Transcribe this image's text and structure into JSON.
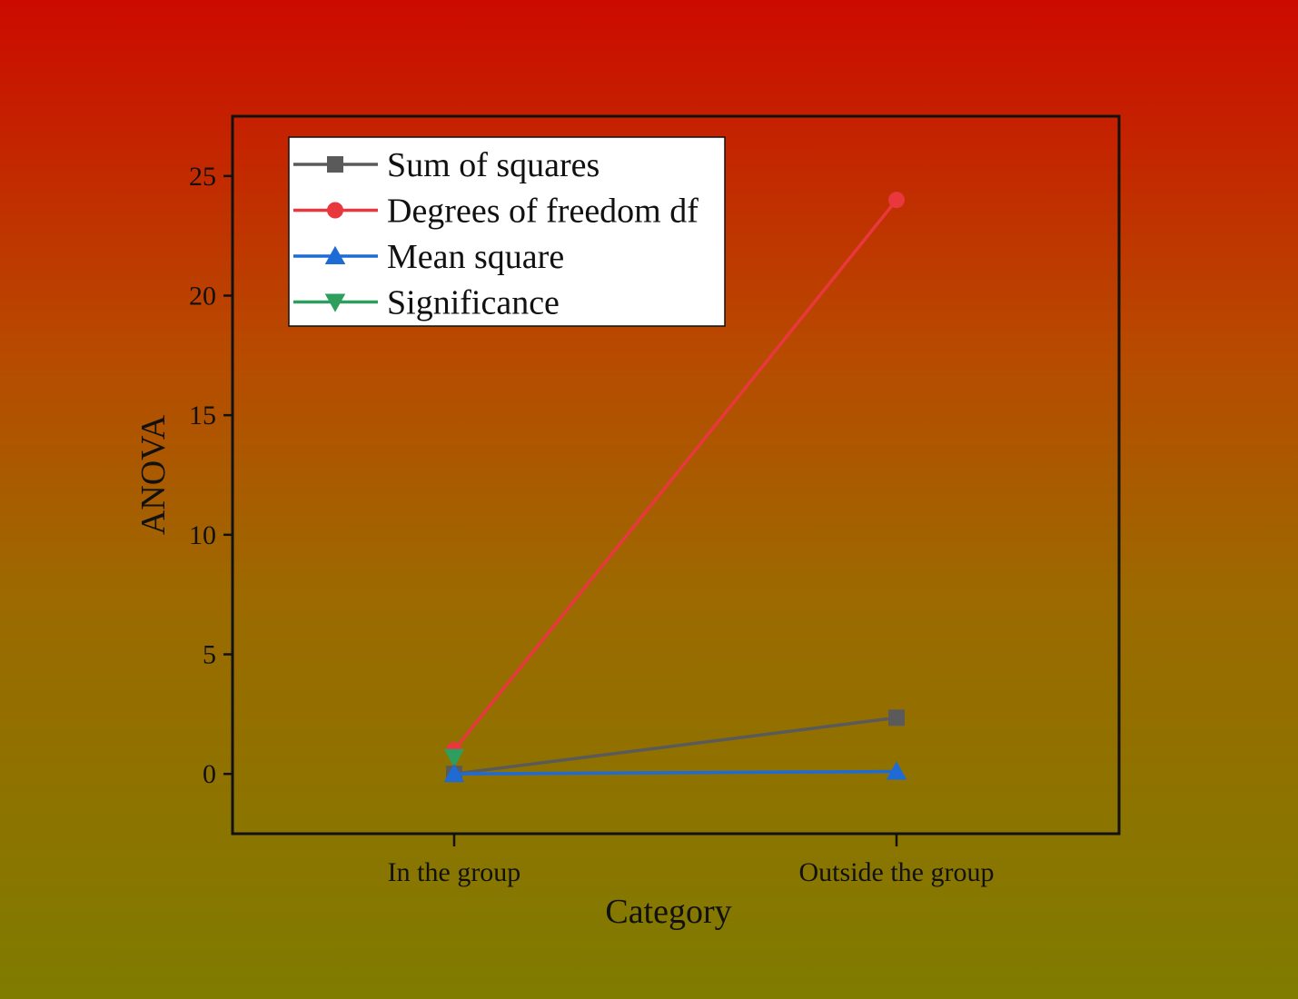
{
  "chart_data": {
    "type": "line",
    "categories": [
      "In the group",
      "Outside the group"
    ],
    "xlabel": "Category",
    "ylabel": "ANOVA",
    "ylim": [
      -2.5,
      27.5
    ],
    "yticks": [
      0,
      5,
      10,
      15,
      20,
      25
    ],
    "grid": false,
    "legend_position": "top-left",
    "series": [
      {
        "name": "Sum of squares",
        "values": [
          0.0,
          2.35
        ],
        "color": "#5a5a5a",
        "marker": "square"
      },
      {
        "name": "Degrees of freedom df",
        "values": [
          1,
          24
        ],
        "color": "#e8383e",
        "marker": "circle"
      },
      {
        "name": "Mean square",
        "values": [
          0.0,
          0.1
        ],
        "color": "#1f6bd6",
        "marker": "triangle-up"
      },
      {
        "name": "Significance",
        "values": [
          0.7,
          null
        ],
        "color": "#2e9e5e",
        "marker": "triangle-down"
      }
    ]
  }
}
